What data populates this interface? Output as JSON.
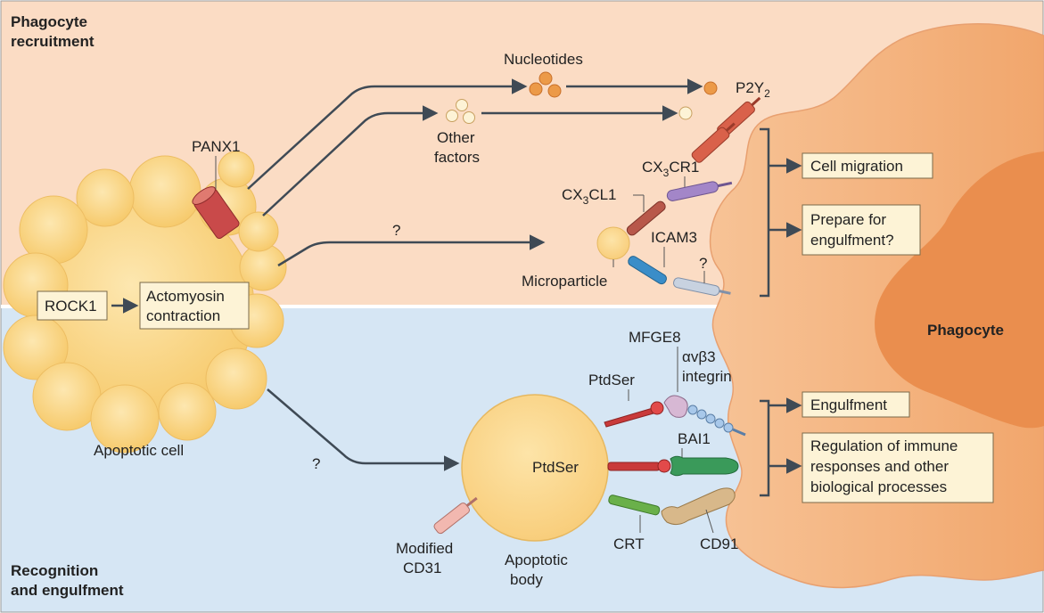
{
  "sections": {
    "top_line1": "Phagocyte",
    "top_line2": "recruitment",
    "bottom_line1": "Recognition",
    "bottom_line2": "and engulfment"
  },
  "labels": {
    "nucleotides": "Nucleotides",
    "p2y_main": "P2Y",
    "p2y_sub": "2",
    "other_factors_1": "Other",
    "other_factors_2": "factors",
    "panx1": "PANX1",
    "cx3cr1_a": "CX",
    "cx3cr1_sub": "3",
    "cx3cr1_b": "CR1",
    "cx3cl1_a": "CX",
    "cx3cl1_sub": "3",
    "cx3cl1_b": "CL1",
    "icam3": "ICAM3",
    "question_1": "?",
    "question_2": "?",
    "question_3": "?",
    "microparticle": "Microparticle",
    "rock1": "ROCK1",
    "actomyosin_1": "Actomyosin",
    "actomyosin_2": "contraction",
    "apoptotic_cell": "Apoptotic cell",
    "phagocyte": "Phagocyte",
    "mfge8": "MFGE8",
    "avb3_1": "αvβ3",
    "avb3_2": "integrin",
    "ptdser_top": "PtdSer",
    "ptdser_body": "PtdSer",
    "bai1": "BAI1",
    "crt": "CRT",
    "cd91": "CD91",
    "modified_cd31_1": "Modified",
    "modified_cd31_2": "CD31",
    "apoptotic_body_1": "Apoptotic",
    "apoptotic_body_2": "body"
  },
  "outcomes": {
    "cell_migration": "Cell migration",
    "prepare_1": "Prepare for",
    "prepare_2": "engulfment?",
    "engulfment": "Engulfment",
    "regulation_1": "Regulation of immune",
    "regulation_2": "responses and other",
    "regulation_3": "biological processes"
  },
  "colors": {
    "top_bg": "#fbdcc4",
    "bottom_bg": "#d6e6f4",
    "cell_fill": "#fbd98e",
    "phagocyte_fill": "#f4b07c",
    "nucleus_fill": "#ea8e4e",
    "box_fill": "#fdf3d6",
    "arrow": "#3f4a55",
    "receptor_red": "#c94a3a"
  }
}
